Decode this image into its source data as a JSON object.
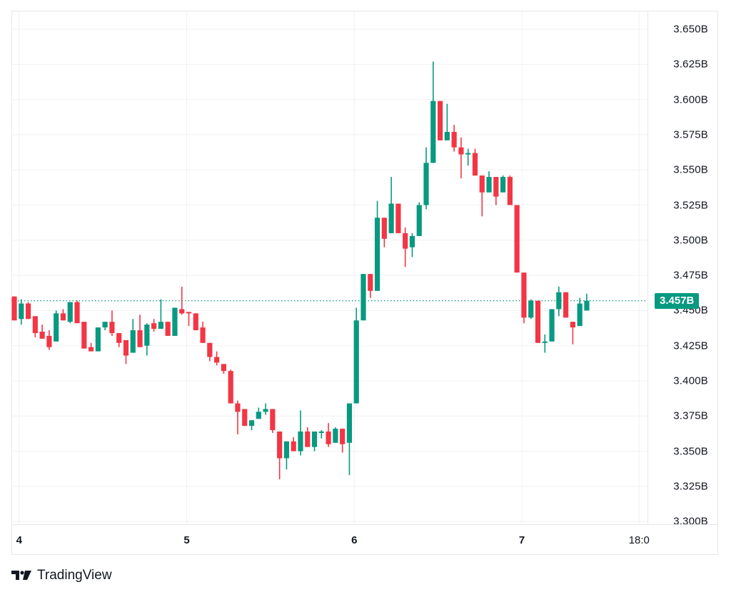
{
  "chart_data": {
    "type": "candlestick",
    "title": "",
    "xlabel": "",
    "ylabel": "",
    "ylim": [
      3.3,
      3.65
    ],
    "y_unit": "B",
    "y_ticks": [
      "3.650B",
      "3.625B",
      "3.600B",
      "3.575B",
      "3.550B",
      "3.525B",
      "3.500B",
      "3.475B",
      "3.450B",
      "3.425B",
      "3.400B",
      "3.375B",
      "3.350B",
      "3.325B",
      "3.300B"
    ],
    "x_ticks": [
      {
        "label": "4",
        "candle_index": 0.7
      },
      {
        "label": "5",
        "candle_index": 24.7
      },
      {
        "label": "6",
        "candle_index": 48.7
      },
      {
        "label": "7",
        "candle_index": 72.7
      },
      {
        "label": "18:0",
        "candle_index": 89.5
      }
    ],
    "grid": true,
    "last_price": 3.457,
    "last_price_label": "3.457B",
    "up_color": "#089981",
    "down_color": "#f23645",
    "candles": [
      [
        3.46,
        3.46,
        3.443,
        3.443
      ],
      [
        3.444,
        3.458,
        3.44,
        3.455
      ],
      [
        3.455,
        3.456,
        3.444,
        3.444
      ],
      [
        3.446,
        3.446,
        3.431,
        3.434
      ],
      [
        3.435,
        3.44,
        3.43,
        3.43
      ],
      [
        3.432,
        3.436,
        3.422,
        3.424
      ],
      [
        3.428,
        3.45,
        3.428,
        3.448
      ],
      [
        3.448,
        3.451,
        3.443,
        3.443
      ],
      [
        3.442,
        3.456,
        3.441,
        3.456
      ],
      [
        3.456,
        3.457,
        3.441,
        3.441
      ],
      [
        3.442,
        3.442,
        3.423,
        3.423
      ],
      [
        3.424,
        3.427,
        3.421,
        3.421
      ],
      [
        3.421,
        3.438,
        3.421,
        3.438
      ],
      [
        3.438,
        3.442,
        3.436,
        3.442
      ],
      [
        3.442,
        3.45,
        3.432,
        3.434
      ],
      [
        3.434,
        3.434,
        3.424,
        3.427
      ],
      [
        3.429,
        3.429,
        3.412,
        3.418
      ],
      [
        3.42,
        3.444,
        3.42,
        3.436
      ],
      [
        3.436,
        3.447,
        3.424,
        3.424
      ],
      [
        3.425,
        3.441,
        3.418,
        3.44
      ],
      [
        3.441,
        3.444,
        3.435,
        3.437
      ],
      [
        3.437,
        3.458,
        3.437,
        3.442
      ],
      [
        3.442,
        3.442,
        3.432,
        3.432
      ],
      [
        3.432,
        3.452,
        3.432,
        3.452
      ],
      [
        3.451,
        3.467,
        3.447,
        3.448
      ],
      [
        3.449,
        3.449,
        3.439,
        3.448
      ],
      [
        3.448,
        3.448,
        3.436,
        3.436
      ],
      [
        3.438,
        3.442,
        3.427,
        3.427
      ],
      [
        3.427,
        3.427,
        3.414,
        3.417
      ],
      [
        3.417,
        3.421,
        3.411,
        3.413
      ],
      [
        3.412,
        3.412,
        3.405,
        3.407
      ],
      [
        3.407,
        3.408,
        3.384,
        3.384
      ],
      [
        3.384,
        3.386,
        3.362,
        3.378
      ],
      [
        3.38,
        3.38,
        3.368,
        3.368
      ],
      [
        3.368,
        3.372,
        3.365,
        3.372
      ],
      [
        3.373,
        3.381,
        3.373,
        3.378
      ],
      [
        3.378,
        3.384,
        3.376,
        3.38
      ],
      [
        3.38,
        3.38,
        3.363,
        3.365
      ],
      [
        3.364,
        3.364,
        3.33,
        3.345
      ],
      [
        3.345,
        3.357,
        3.337,
        3.357
      ],
      [
        3.357,
        3.36,
        3.35,
        3.35
      ],
      [
        3.35,
        3.379,
        3.347,
        3.364
      ],
      [
        3.364,
        3.367,
        3.353,
        3.353
      ],
      [
        3.353,
        3.364,
        3.35,
        3.364
      ],
      [
        3.363,
        3.365,
        3.359,
        3.364
      ],
      [
        3.364,
        3.37,
        3.353,
        3.355
      ],
      [
        3.356,
        3.367,
        3.356,
        3.366
      ],
      [
        3.366,
        3.366,
        3.349,
        3.355
      ],
      [
        3.356,
        3.384,
        3.333,
        3.384
      ],
      [
        3.384,
        3.452,
        3.384,
        3.443
      ],
      [
        3.443,
        3.476,
        3.443,
        3.476
      ],
      [
        3.476,
        3.476,
        3.459,
        3.464
      ],
      [
        3.464,
        3.528,
        3.464,
        3.516
      ],
      [
        3.516,
        3.516,
        3.495,
        3.501
      ],
      [
        3.505,
        3.545,
        3.505,
        3.526
      ],
      [
        3.526,
        3.526,
        3.505,
        3.505
      ],
      [
        3.505,
        3.509,
        3.481,
        3.494
      ],
      [
        3.495,
        3.505,
        3.488,
        3.503
      ],
      [
        3.503,
        3.527,
        3.503,
        3.525
      ],
      [
        3.525,
        3.566,
        3.522,
        3.555
      ],
      [
        3.555,
        3.627,
        3.555,
        3.599
      ],
      [
        3.599,
        3.599,
        3.571,
        3.571
      ],
      [
        3.571,
        3.597,
        3.571,
        3.577
      ],
      [
        3.577,
        3.582,
        3.563,
        3.566
      ],
      [
        3.566,
        3.573,
        3.544,
        3.561
      ],
      [
        3.561,
        3.565,
        3.553,
        3.562
      ],
      [
        3.562,
        3.565,
        3.546,
        3.546
      ],
      [
        3.546,
        3.546,
        3.517,
        3.534
      ],
      [
        3.534,
        3.549,
        3.534,
        3.545
      ],
      [
        3.545,
        3.545,
        3.525,
        3.531
      ],
      [
        3.534,
        3.546,
        3.534,
        3.545
      ],
      [
        3.545,
        3.546,
        3.525,
        3.525
      ],
      [
        3.525,
        3.525,
        3.477,
        3.477
      ],
      [
        3.477,
        3.477,
        3.441,
        3.445
      ],
      [
        3.445,
        3.458,
        3.444,
        3.457
      ],
      [
        3.457,
        3.457,
        3.427,
        3.427
      ],
      [
        3.428,
        3.433,
        3.42,
        3.428
      ],
      [
        3.428,
        3.451,
        3.428,
        3.451
      ],
      [
        3.451,
        3.467,
        3.446,
        3.463
      ],
      [
        3.463,
        3.463,
        3.445,
        3.445
      ],
      [
        3.442,
        3.442,
        3.426,
        3.438
      ],
      [
        3.439,
        3.459,
        3.439,
        3.455
      ],
      [
        3.45,
        3.462,
        3.45,
        3.457
      ]
    ],
    "candle_format": "[open, high, low, close]"
  },
  "branding": {
    "name": "TradingView"
  }
}
